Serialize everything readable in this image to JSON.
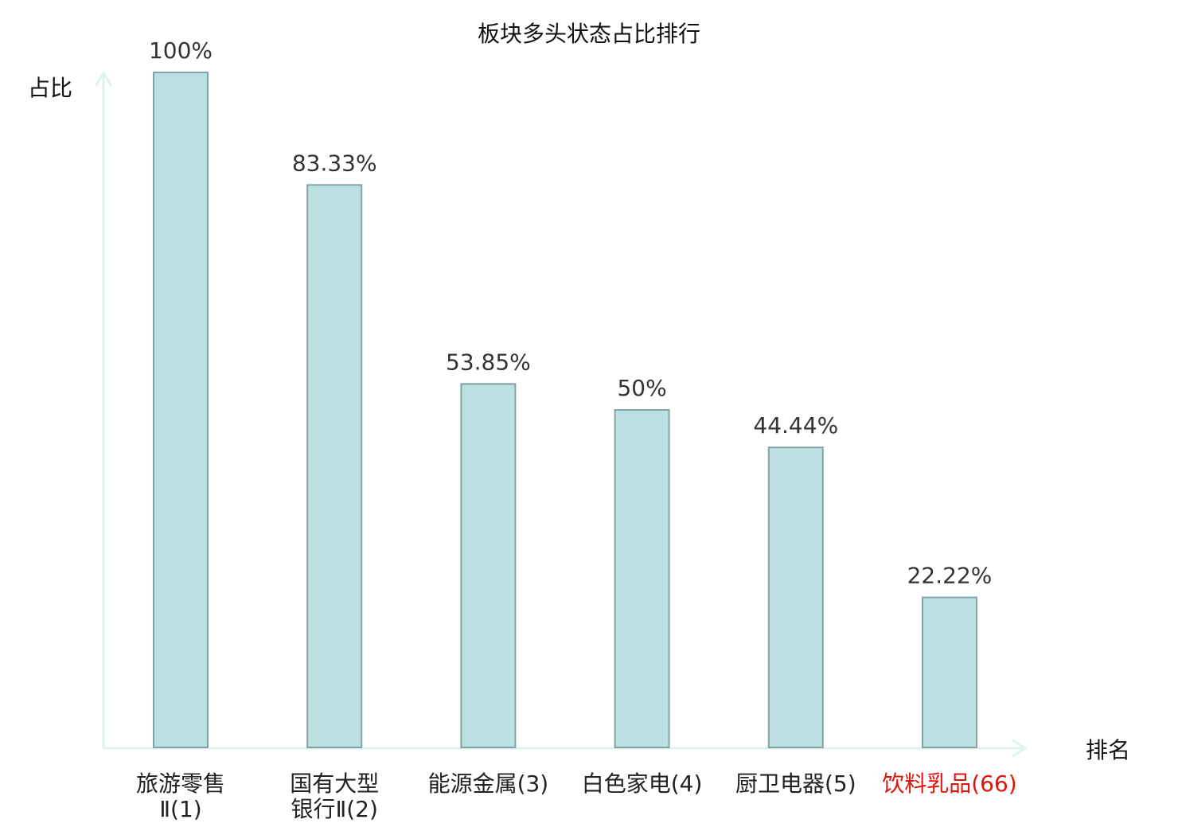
{
  "chart_data": {
    "type": "bar",
    "title": "板块多头状态占比排行",
    "ylabel": "占比",
    "xlabel": "排名",
    "ylim": [
      0,
      100
    ],
    "grid": false,
    "categories": [
      [
        "旅游零售",
        "Ⅱ(1)"
      ],
      [
        "国有大型",
        "银行Ⅱ(2)"
      ],
      [
        "能源金属(3)"
      ],
      [
        "白色家电(4)"
      ],
      [
        "厨卫电器(5)"
      ],
      [
        "饮料乳品(66)"
      ]
    ],
    "values": [
      100,
      83.33,
      53.85,
      50,
      44.44,
      22.22
    ],
    "value_labels": [
      "100%",
      "83.33%",
      "53.85%",
      "50%",
      "44.44%",
      "22.22%"
    ],
    "highlight_index": 5,
    "colors": {
      "bar_fill": "#bde0e3",
      "bar_stroke": "#7fa3a6",
      "axis": "#e0f2ef",
      "text": "#222222",
      "value_text": "#333333",
      "highlight": "#e3120b"
    }
  }
}
